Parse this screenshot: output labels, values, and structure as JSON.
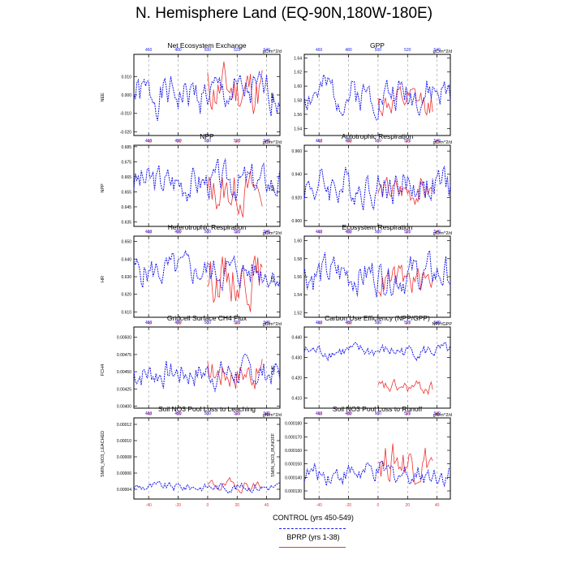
{
  "title": "N. Hemisphere Land (EQ-90N,180W-180E)",
  "colors": {
    "control": "#1a1aee",
    "bprp": "#ee3333"
  },
  "legend": {
    "control": "CONTROL (yrs 450-549)",
    "bprp": "BPRP (yrs 1-38)"
  },
  "chart_data": [
    {
      "type": "line",
      "title": "Net Ecosystem Exchange",
      "ylabel": "NEE",
      "units": "gC/m^2/d",
      "ylim": [
        -0.022,
        0.022
      ],
      "yticks": [
        -0.02,
        -0.01,
        0.0,
        0.01
      ],
      "ytick_labels": [
        "-0.020",
        "-0.010",
        "0.000",
        "0.010"
      ],
      "xlim": [
        -50,
        49
      ],
      "xticks_bottom": [
        -40,
        -20,
        0,
        20,
        40
      ],
      "xticks_top": [
        460,
        480,
        500,
        520,
        540
      ],
      "control": {
        "x_range": [
          -50,
          49
        ],
        "base": 0.0,
        "amp": 0.009,
        "seed": 1
      },
      "bprp": {
        "x_range": [
          0,
          37
        ],
        "base": 0.003,
        "amp": 0.012,
        "seed": 11
      }
    },
    {
      "type": "line",
      "title": "GPP",
      "ylabel": "GPP",
      "units": "gC/m^2/d",
      "ylim": [
        1.53,
        1.645
      ],
      "yticks": [
        1.54,
        1.56,
        1.58,
        1.6,
        1.62,
        1.64
      ],
      "ytick_labels": [
        "1.54",
        "1.56",
        "1.58",
        "1.60",
        "1.62",
        "1.64"
      ],
      "xlim": [
        -50,
        49
      ],
      "xticks_bottom": [
        -40,
        -20,
        0,
        20,
        40
      ],
      "xticks_top": [
        460,
        480,
        500,
        520,
        540
      ],
      "control": {
        "x_range": [
          -50,
          49
        ],
        "base": 1.59,
        "amp": 0.022,
        "seed": 2
      },
      "bprp": {
        "x_range": [
          0,
          37
        ],
        "base": 1.575,
        "amp": 0.018,
        "seed": 12
      }
    },
    {
      "type": "line",
      "title": "NPP",
      "ylabel": "NPP",
      "units": "gC/m^2/d",
      "ylim": [
        0.632,
        0.686
      ],
      "yticks": [
        0.635,
        0.645,
        0.655,
        0.665,
        0.675,
        0.685
      ],
      "ytick_labels": [
        "0.635",
        "0.645",
        "0.655",
        "0.665",
        "0.675",
        "0.685"
      ],
      "xlim": [
        -50,
        49
      ],
      "xticks_bottom": [
        -40,
        -20,
        0,
        20,
        40
      ],
      "xticks_top": [
        460,
        480,
        500,
        520,
        540
      ],
      "control": {
        "x_range": [
          -50,
          49
        ],
        "base": 0.662,
        "amp": 0.01,
        "seed": 3
      },
      "bprp": {
        "x_range": [
          0,
          37
        ],
        "base": 0.655,
        "amp": 0.012,
        "seed": 13
      }
    },
    {
      "type": "line",
      "title": "Autotrophic Respiration",
      "ylabel": "AR",
      "units": "gC/m^2/d",
      "ylim": [
        0.895,
        0.965
      ],
      "yticks": [
        0.9,
        0.92,
        0.94,
        0.96
      ],
      "ytick_labels": [
        "0.900",
        "0.920",
        "0.940",
        "0.960"
      ],
      "xlim": [
        -50,
        49
      ],
      "xticks_bottom": [
        -40,
        -20,
        0,
        20,
        40
      ],
      "xticks_top": [
        460,
        480,
        500,
        520,
        540
      ],
      "control": {
        "x_range": [
          -50,
          49
        ],
        "base": 0.93,
        "amp": 0.014,
        "seed": 4
      },
      "bprp": {
        "x_range": [
          0,
          37
        ],
        "base": 0.925,
        "amp": 0.01,
        "seed": 14
      }
    },
    {
      "type": "line",
      "title": "Heterotrophic Respiration",
      "ylabel": "HR",
      "units": "gC/m^2/d",
      "ylim": [
        0.607,
        0.653
      ],
      "yticks": [
        0.61,
        0.62,
        0.63,
        0.64,
        0.65
      ],
      "ytick_labels": [
        "0.610",
        "0.620",
        "0.630",
        "0.640",
        "0.650"
      ],
      "xlim": [
        -50,
        49
      ],
      "xticks_bottom": [
        -40,
        -20,
        0,
        20,
        40
      ],
      "xticks_top": [
        460,
        480,
        500,
        520,
        540
      ],
      "control": {
        "x_range": [
          -50,
          49
        ],
        "base": 0.633,
        "amp": 0.008,
        "seed": 5
      },
      "bprp": {
        "x_range": [
          0,
          37
        ],
        "base": 0.63,
        "amp": 0.012,
        "seed": 15
      }
    },
    {
      "type": "line",
      "title": "Ecosystem Respiration",
      "ylabel": "ER",
      "units": "gC/m^2/d",
      "ylim": [
        1.515,
        1.605
      ],
      "yticks": [
        1.52,
        1.54,
        1.56,
        1.58,
        1.6
      ],
      "ytick_labels": [
        "1.52",
        "1.54",
        "1.56",
        "1.58",
        "1.60"
      ],
      "xlim": [
        -50,
        49
      ],
      "xticks_bottom": [
        -40,
        -20,
        0,
        20,
        40
      ],
      "xticks_top": [
        460,
        480,
        500,
        520,
        540
      ],
      "control": {
        "x_range": [
          -50,
          49
        ],
        "base": 1.563,
        "amp": 0.018,
        "seed": 6
      },
      "bprp": {
        "x_range": [
          0,
          37
        ],
        "base": 1.555,
        "amp": 0.015,
        "seed": 16
      }
    },
    {
      "type": "line",
      "title": "Gridcell Surface CH4 Flux",
      "ylabel": "FCH4",
      "units": "gC/m^2/d",
      "ylim": [
        0.00397,
        0.00515
      ],
      "yticks": [
        0.004,
        0.00425,
        0.0045,
        0.00475,
        0.005
      ],
      "ytick_labels": [
        "0.00400",
        "0.00425",
        "0.00450",
        "0.00475",
        "0.00500"
      ],
      "xlim": [
        -50,
        49
      ],
      "xticks_bottom": [
        -40,
        -20,
        0,
        20,
        40
      ],
      "xticks_top": [
        460,
        480,
        500,
        520,
        540
      ],
      "control": {
        "x_range": [
          -50,
          49
        ],
        "base": 0.00448,
        "amp": 0.00018,
        "seed": 7
      },
      "bprp": {
        "x_range": [
          0,
          37
        ],
        "base": 0.0045,
        "amp": 0.0002,
        "seed": 17
      }
    },
    {
      "type": "line",
      "title": "Carbon Use Efficiency (NPP/GPP)",
      "ylabel": "CUE",
      "units": "NPP/GPP",
      "ylim": [
        0.405,
        0.445
      ],
      "yticks": [
        0.41,
        0.42,
        0.43,
        0.44
      ],
      "ytick_labels": [
        "0.410",
        "0.420",
        "0.430",
        "0.440"
      ],
      "xlim": [
        -50,
        49
      ],
      "xticks_bottom": [
        -40,
        -20,
        0,
        20,
        40
      ],
      "xticks_top": [
        460,
        480,
        500,
        520,
        540
      ],
      "control": {
        "x_range": [
          -50,
          49
        ],
        "base": 0.433,
        "amp": 0.003,
        "seed": 8
      },
      "bprp": {
        "x_range": [
          0,
          37
        ],
        "base": 0.415,
        "amp": 0.003,
        "seed": 18
      }
    },
    {
      "type": "line",
      "title": "Soil NO3 Pool Loss to Leaching",
      "ylabel": "SMIN_NO3_LEACHED",
      "units": "gN/m^2/d",
      "ylim": [
        2.8e-05,
        0.000128
      ],
      "yticks": [
        4e-05,
        6e-05,
        8e-05,
        0.0001,
        0.00012
      ],
      "ytick_labels": [
        "0.00004",
        "0.00006",
        "0.00008",
        "0.00010",
        "0.00012"
      ],
      "xlim": [
        -50,
        49
      ],
      "xticks_bottom": [
        -40,
        -20,
        0,
        20,
        40
      ],
      "xticks_top": [
        460,
        480,
        500,
        520,
        540
      ],
      "control": {
        "x_range": [
          -50,
          49
        ],
        "base": 4.3e-05,
        "amp": 5e-06,
        "seed": 9
      },
      "bprp": {
        "x_range": [
          0,
          37
        ],
        "base": 4.5e-05,
        "amp": 6e-06,
        "seed": 19
      }
    },
    {
      "type": "line",
      "title": "Soil NO3 Pool Loss to Runoff",
      "ylabel": "SMIN_NO3_RUNOFF",
      "units": "gN/m^2/d",
      "ylim": [
        0.000124,
        0.000184
      ],
      "yticks": [
        0.00013,
        0.00014,
        0.00015,
        0.00016,
        0.00017,
        0.00018
      ],
      "ytick_labels": [
        "0.000130",
        "0.000140",
        "0.000150",
        "0.000160",
        "0.000170",
        "0.000180"
      ],
      "xlim": [
        -50,
        49
      ],
      "xticks_bottom": [
        -40,
        -20,
        0,
        20,
        40
      ],
      "xticks_top": [
        460,
        480,
        500,
        520,
        540
      ],
      "control": {
        "x_range": [
          -50,
          49
        ],
        "base": 0.000143,
        "amp": 7e-06,
        "seed": 10
      },
      "bprp": {
        "x_range": [
          0,
          37
        ],
        "base": 0.000153,
        "amp": 1.3e-05,
        "seed": 20
      }
    }
  ]
}
